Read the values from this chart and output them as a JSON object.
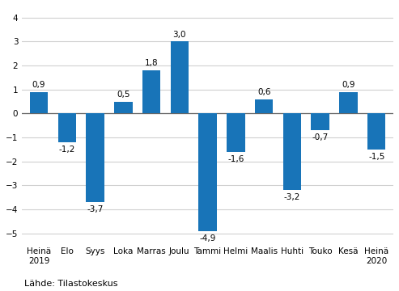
{
  "categories": [
    "Heinä\n2019",
    "Elo",
    "Syys",
    "Loka",
    "Marras",
    "Joulu",
    "Tammi",
    "Helmi",
    "Maalis",
    "Huhti",
    "Touko",
    "Kesä",
    "Heinä\n2020"
  ],
  "values": [
    0.9,
    -1.2,
    -3.7,
    0.5,
    1.8,
    3.0,
    -4.9,
    -1.6,
    0.6,
    -3.2,
    -0.7,
    0.9,
    -1.5
  ],
  "bar_color": "#1874b8",
  "ylim": [
    -5.5,
    4.5
  ],
  "yticks": [
    -5,
    -4,
    -3,
    -2,
    -1,
    0,
    1,
    2,
    3,
    4
  ],
  "source_label": "Lähde: Tilastokeskus",
  "label_fontsize": 7.5,
  "tick_fontsize": 7.5,
  "source_fontsize": 8.0,
  "background_color": "#ffffff",
  "grid_color": "#d0d0d0"
}
